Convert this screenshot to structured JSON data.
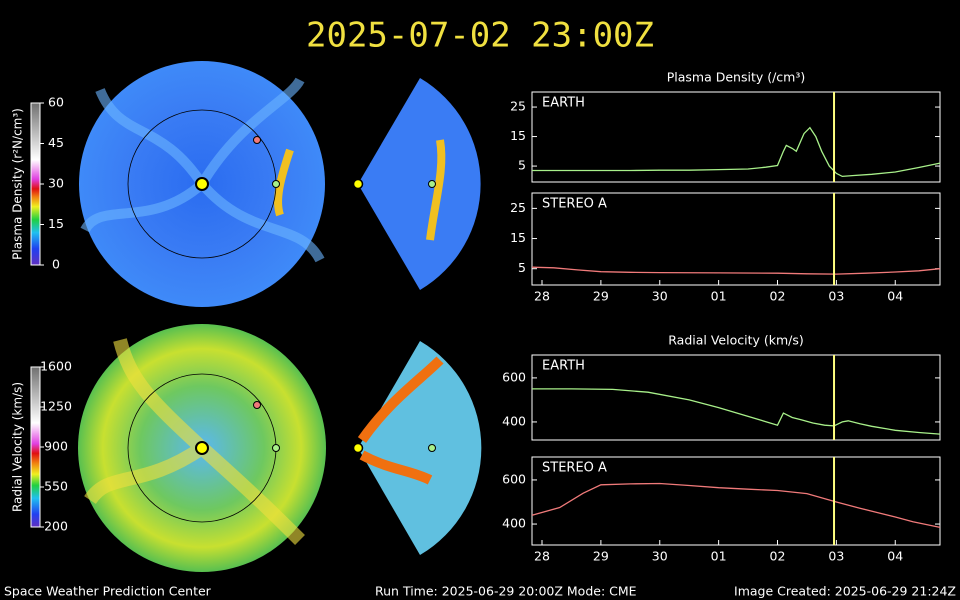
{
  "header": {
    "title": "2025-07-02  23:00Z"
  },
  "colorbars": [
    {
      "label": "Plasma Density (r²N/cm³)",
      "lim": [
        0,
        60
      ],
      "ticks": [
        60,
        45,
        30,
        15,
        0
      ]
    },
    {
      "label": "Radial Velocity (km/s)",
      "lim": [
        200,
        1600
      ],
      "ticks": [
        1600,
        1250,
        900,
        550,
        200
      ]
    }
  ],
  "chart_data": [
    {
      "type": "line",
      "title": "Plasma Density (/cm³)",
      "xlim": [
        -0.17,
        6.76
      ],
      "ylim": [
        -0.4,
        30.1
      ],
      "yticks": [
        5,
        15,
        25
      ],
      "current_x": 4.96,
      "x": [
        -0.17,
        0.5,
        1.0,
        1.5,
        2.0,
        2.5,
        3.0,
        3.5,
        3.8,
        4.0,
        4.1,
        4.15,
        4.25,
        4.32,
        4.45,
        4.55,
        4.65,
        4.75,
        4.88,
        5.0,
        5.1,
        5.3,
        5.6,
        6.0,
        6.4,
        6.76
      ],
      "series": [
        {
          "name": "EARTH",
          "color": "#a8f08a",
          "values": [
            3.5,
            3.5,
            3.5,
            3.5,
            3.6,
            3.6,
            3.8,
            4.0,
            4.6,
            5.2,
            10,
            12,
            11,
            10,
            16,
            18,
            15,
            10,
            5,
            2.5,
            1.5,
            1.8,
            2.2,
            3,
            4.5,
            6
          ]
        }
      ]
    },
    {
      "type": "line",
      "xlim": [
        -0.17,
        6.76
      ],
      "ylim": [
        -0.4,
        30.1
      ],
      "yticks": [
        5,
        15,
        25
      ],
      "current_x": 4.96,
      "xticks": [
        {
          "value": 0,
          "label": "28"
        },
        {
          "value": 1,
          "label": "29"
        },
        {
          "value": 2,
          "label": "30"
        },
        {
          "value": 3,
          "label": "01"
        },
        {
          "value": 4,
          "label": "02"
        },
        {
          "value": 5,
          "label": "03"
        },
        {
          "value": 6,
          "label": "04"
        }
      ],
      "x": [
        -0.17,
        0.2,
        0.6,
        1.0,
        1.5,
        2.0,
        3.0,
        4.0,
        4.5,
        5.0,
        5.5,
        6.0,
        6.4,
        6.76
      ],
      "series": [
        {
          "name": "STEREO A",
          "color": "#f07a7a",
          "values": [
            5.5,
            5.3,
            4.6,
            4.0,
            3.8,
            3.7,
            3.6,
            3.5,
            3.3,
            3.2,
            3.5,
            3.9,
            4.3,
            5
          ]
        }
      ]
    },
    {
      "type": "line",
      "title": "Radial Velocity (km/s)",
      "xlim": [
        -0.17,
        6.76
      ],
      "ylim": [
        318,
        704
      ],
      "yticks": [
        400,
        600
      ],
      "current_x": 4.96,
      "x": [
        -0.17,
        0.5,
        1.2,
        1.8,
        2.5,
        3.0,
        3.5,
        4.0,
        4.1,
        4.25,
        4.4,
        4.6,
        4.8,
        4.96,
        5.1,
        5.2,
        5.4,
        5.6,
        6.0,
        6.4,
        6.76
      ],
      "series": [
        {
          "name": "EARTH",
          "color": "#a8f08a",
          "values": [
            550,
            550,
            548,
            535,
            500,
            465,
            425,
            385,
            440,
            420,
            410,
            395,
            385,
            382,
            400,
            405,
            392,
            380,
            362,
            352,
            345
          ]
        }
      ]
    },
    {
      "type": "line",
      "xlim": [
        -0.17,
        6.76
      ],
      "ylim": [
        305,
        704
      ],
      "yticks": [
        400,
        600
      ],
      "current_x": 4.96,
      "xticks": [
        {
          "value": 0,
          "label": "28"
        },
        {
          "value": 1,
          "label": "29"
        },
        {
          "value": 2,
          "label": "30"
        },
        {
          "value": 3,
          "label": "01"
        },
        {
          "value": 4,
          "label": "02"
        },
        {
          "value": 5,
          "label": "03"
        },
        {
          "value": 6,
          "label": "04"
        }
      ],
      "x": [
        -0.17,
        0.3,
        0.7,
        1.0,
        1.5,
        2.0,
        2.5,
        3.0,
        3.5,
        4.0,
        4.5,
        5.0,
        5.4,
        5.7,
        6.0,
        6.3,
        6.76
      ],
      "series": [
        {
          "name": "STEREO A",
          "color": "#f07a7a",
          "values": [
            440,
            475,
            540,
            578,
            582,
            584,
            575,
            565,
            558,
            552,
            538,
            500,
            472,
            452,
            432,
            410,
            385
          ]
        }
      ]
    }
  ],
  "footer": {
    "left": "Space Weather Prediction Center",
    "center": "Run Time: 2025-06-29 20:00Z  Mode: CME",
    "right": "Image Created: 2025-06-29 21:24Z"
  }
}
